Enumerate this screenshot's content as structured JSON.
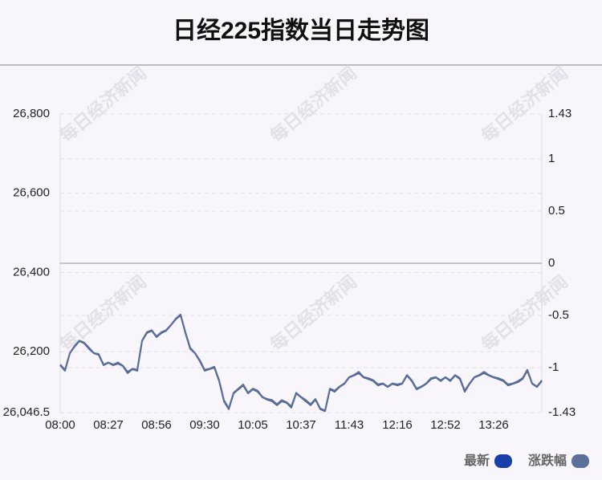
{
  "chart_data": {
    "type": "line",
    "title": "日经225指数当日走势图",
    "watermark": "每日经济新闻",
    "categories": [
      "08:00",
      null,
      null,
      null,
      null,
      null,
      null,
      null,
      null,
      null,
      "08:27",
      null,
      null,
      null,
      null,
      null,
      null,
      null,
      null,
      null,
      "08:56",
      null,
      null,
      null,
      null,
      null,
      null,
      null,
      null,
      null,
      "09:30",
      null,
      null,
      null,
      null,
      null,
      null,
      null,
      null,
      null,
      "10:05",
      null,
      null,
      null,
      null,
      null,
      null,
      null,
      null,
      null,
      "10:37",
      null,
      null,
      null,
      null,
      null,
      null,
      null,
      null,
      null,
      "11:43",
      null,
      null,
      null,
      null,
      null,
      null,
      null,
      null,
      null,
      "12:16",
      null,
      null,
      null,
      null,
      null,
      null,
      null,
      null,
      null,
      "12:52",
      null,
      null,
      null,
      null,
      null,
      null,
      null,
      null,
      null,
      "13:26",
      null,
      null,
      null,
      null,
      null,
      null,
      null,
      null,
      null,
      null
    ],
    "series": [
      {
        "name": "最新",
        "color": "#1a3fa8",
        "line_color": "#4f6490",
        "values": [
          26166,
          26152,
          26196,
          26213,
          26227,
          26221,
          26207,
          26196,
          26192,
          26166,
          26172,
          26166,
          26170,
          26164,
          26146,
          26156,
          26152,
          26227,
          26247,
          26253,
          26237,
          26247,
          26253,
          26267,
          26282,
          26292,
          26247,
          26207,
          26196,
          26176,
          26152,
          26156,
          26160,
          26126,
          26075,
          26055,
          26095,
          26105,
          26115,
          26095,
          26105,
          26099,
          26085,
          26079,
          26075,
          26065,
          26075,
          26071,
          26059,
          26095,
          26085,
          26075,
          26065,
          26079,
          26055,
          26050,
          26105,
          26099,
          26111,
          26119,
          26135,
          26140,
          26146,
          26135,
          26131,
          26126,
          26115,
          26119,
          26111,
          26119,
          26115,
          26119,
          26140,
          26126,
          26105,
          26111,
          26119,
          26131,
          26135,
          26126,
          26135,
          26126,
          26140,
          26131,
          26099,
          26119,
          26135,
          26140,
          26146,
          26140,
          26135,
          26131,
          26126,
          26115,
          26119,
          26123,
          26131,
          26152,
          26119,
          26111,
          26126
        ]
      },
      {
        "name": "涨跌幅",
        "color": "#5a6f9a",
        "axis": "y2",
        "values": [
          -0.97,
          -1.02,
          -0.86,
          -0.79,
          -0.74,
          -0.76,
          -0.81,
          -0.86,
          -0.87,
          -0.97,
          -0.95,
          -0.97,
          -0.95,
          -0.98,
          -1.04,
          -1.01,
          -1.02,
          -0.74,
          -0.66,
          -0.64,
          -0.7,
          -0.66,
          -0.64,
          -0.59,
          -0.53,
          -0.49,
          -0.66,
          -0.81,
          -0.86,
          -0.93,
          -1.02,
          -1.01,
          -0.99,
          -1.12,
          -1.31,
          -1.39,
          -1.24,
          -1.2,
          -1.16,
          -1.24,
          -1.2,
          -1.22,
          -1.28,
          -1.3,
          -1.31,
          -1.35,
          -1.31,
          -1.33,
          -1.37,
          -1.24,
          -1.28,
          -1.31,
          -1.35,
          -1.3,
          -1.39,
          -1.41,
          -1.2,
          -1.22,
          -1.18,
          -1.15,
          -1.09,
          -1.07,
          -1.04,
          -1.09,
          -1.1,
          -1.12,
          -1.16,
          -1.15,
          -1.18,
          -1.15,
          -1.16,
          -1.15,
          -1.07,
          -1.12,
          -1.2,
          -1.18,
          -1.15,
          -1.1,
          -1.09,
          -1.12,
          -1.09,
          -1.12,
          -1.07,
          -1.1,
          -1.22,
          -1.15,
          -1.09,
          -1.07,
          -1.04,
          -1.07,
          -1.09,
          -1.1,
          -1.12,
          -1.16,
          -1.15,
          -1.13,
          -1.1,
          -1.02,
          -1.15,
          -1.18,
          -1.12
        ]
      }
    ],
    "ylim": [
      26046.5,
      26800
    ],
    "yticks": [
      {
        "value": 26800,
        "label": "26,800"
      },
      {
        "value": 26600,
        "label": "26,600"
      },
      {
        "value": 26400,
        "label": "26,400"
      },
      {
        "value": 26200,
        "label": "26,200"
      },
      {
        "value": 26046.5,
        "label": "26,046.5"
      }
    ],
    "y2lim": [
      -1.43,
      1.43
    ],
    "y2ticks": [
      1.43,
      1,
      0.5,
      0,
      -0.5,
      -1,
      -1.43
    ],
    "grid": true,
    "legend": "bottom-right"
  }
}
